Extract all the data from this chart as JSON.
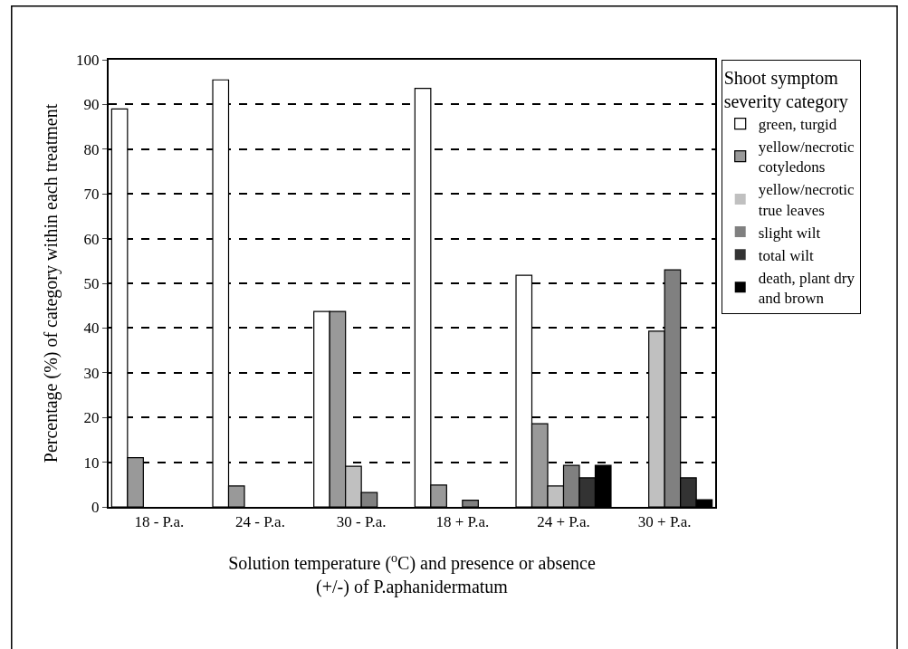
{
  "chart_data": {
    "type": "bar",
    "categories": [
      "18 - P.a.",
      "24 - P.a.",
      "30 - P.a.",
      "18 + P.a.",
      "24 + P.a.",
      "30 + P.a."
    ],
    "series": [
      {
        "name": "green, turgid",
        "color": "#ffffff",
        "values": [
          89,
          95.5,
          43.7,
          93.6,
          51.8,
          0
        ]
      },
      {
        "name": "yellow/necrotic cotyledons",
        "color": "#999999",
        "values": [
          11,
          4.7,
          43.7,
          4.9,
          18.6,
          0
        ]
      },
      {
        "name": "yellow/necrotic true leaves",
        "color": "#c0c0c0",
        "values": [
          0,
          0,
          9.1,
          0,
          4.7,
          39.3
        ]
      },
      {
        "name": "slight wilt",
        "color": "#808080",
        "values": [
          0,
          0,
          3.2,
          1.5,
          9.3,
          53
        ]
      },
      {
        "name": "total wilt",
        "color": "#333333",
        "values": [
          0,
          0,
          0,
          0,
          6.5,
          6.5
        ]
      },
      {
        "name": "death, plant dry and brown",
        "color": "#000000",
        "values": [
          0,
          0,
          0,
          0,
          9.3,
          1.6
        ]
      }
    ],
    "xlabel": "Solution temperature ($^{o}$C) and presence or absence\n(+/-) of P.aphanidermatum",
    "ylabel": "Percentage (%) of category within each treatment",
    "legend_title": "Shoot symptom\nseverity category",
    "ylim": [
      0,
      100
    ],
    "yticks": [
      0,
      10,
      20,
      30,
      40,
      50,
      60,
      70,
      80,
      90,
      100
    ],
    "grid": "y",
    "legend": "right"
  }
}
